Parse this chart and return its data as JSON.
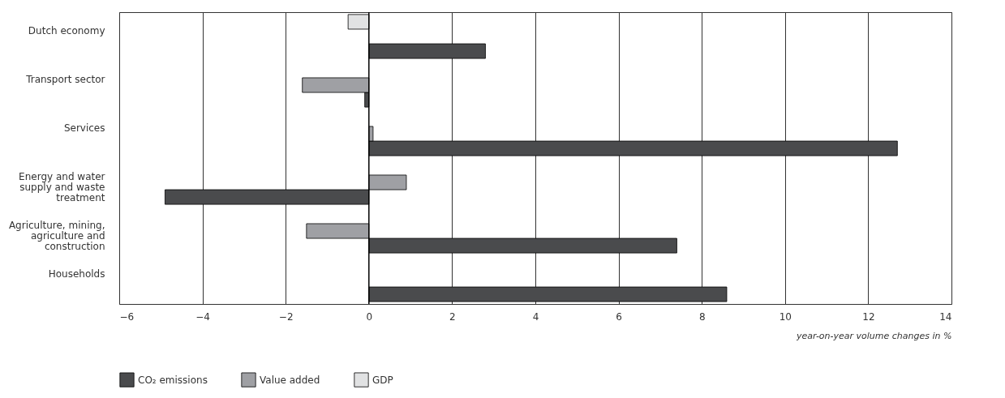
{
  "chart_data": {
    "type": "bar",
    "orientation": "horizontal",
    "xlabel": "year-on-year volume changes in %",
    "categories": [
      "Dutch economy",
      "Transport sector",
      "Services",
      "Energy and water supply and waste treatment",
      "Agriculture, mining, agriculture and construction",
      "Households"
    ],
    "series": [
      {
        "name": "CO₂ emissions",
        "color": "#4a4b4d",
        "values": [
          2.8,
          -0.1,
          12.7,
          -4.9,
          7.4,
          8.6
        ]
      },
      {
        "name": "Value added",
        "color": "#9fa0a4",
        "values": [
          null,
          -1.6,
          0.1,
          0.9,
          -1.5,
          null
        ]
      },
      {
        "name": "GDP",
        "color": "#e1e2e3",
        "values": [
          -0.5,
          null,
          null,
          null,
          null,
          null
        ]
      }
    ],
    "xlim": [
      -6,
      14
    ],
    "xticks": [
      -6,
      -4,
      -2,
      0,
      2,
      4,
      6,
      8,
      10,
      12,
      14
    ],
    "grid": "x",
    "legend": "bottom",
    "ref_lines": [
      {
        "axis": "x",
        "value": 0,
        "color": "#000000"
      }
    ]
  }
}
